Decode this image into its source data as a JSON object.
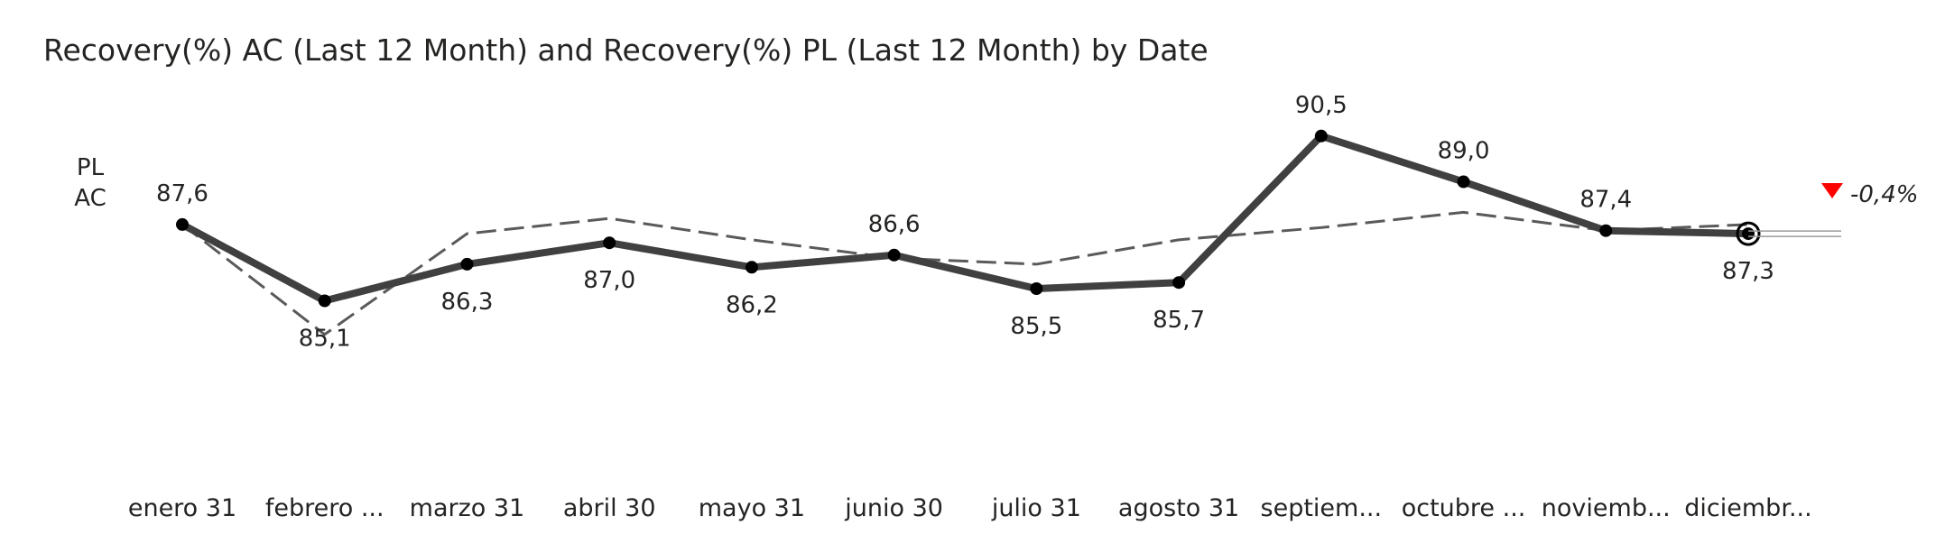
{
  "chart_data": {
    "type": "line",
    "title": "Recovery(%) AC (Last 12 Month) and Recovery(%) PL (Last 12 Month) by Date",
    "categories": [
      "enero 31",
      "febrero ...",
      "marzo 31",
      "abril 30",
      "mayo 31",
      "junio 30",
      "julio 31",
      "agosto 31",
      "septiem...",
      "octubre ...",
      "noviemb...",
      "diciembr..."
    ],
    "series": [
      {
        "name": "AC",
        "style": "solid",
        "color": "#404040",
        "values": [
          87.6,
          85.1,
          86.3,
          87.0,
          86.2,
          86.6,
          85.5,
          85.7,
          90.5,
          89.0,
          87.4,
          87.3
        ]
      },
      {
        "name": "PL",
        "style": "dashed",
        "color": "#5a5a5a",
        "values": [
          87.6,
          84.0,
          87.3,
          87.8,
          87.1,
          86.5,
          86.3,
          87.1,
          87.5,
          88.0,
          87.4,
          87.6
        ]
      }
    ],
    "data_labels": [
      "87,6",
      "85,1",
      "86,3",
      "87,0",
      "86,2",
      "86,6",
      "85,5",
      "85,7",
      "90,5",
      "89,0",
      "87,4",
      "87,3"
    ],
    "data_label_position": [
      "above",
      "below",
      "below",
      "below",
      "below",
      "above",
      "below",
      "below",
      "above",
      "above",
      "above",
      "below"
    ],
    "variance": {
      "label": "-0,4%",
      "direction": "down",
      "color": "#ff0000"
    },
    "ylim": [
      79,
      92
    ],
    "grid": false,
    "legend": "inline-left"
  }
}
